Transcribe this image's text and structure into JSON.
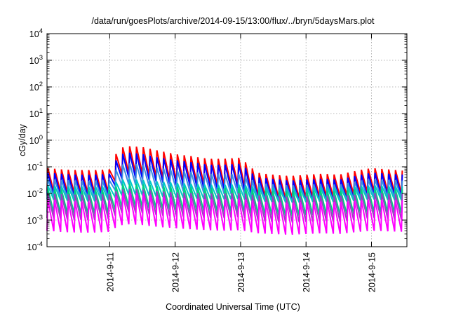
{
  "chart_data": {
    "type": "line",
    "title": "/data/run/goesPlots/archive/2014-09-15/13:00/flux/../bryn/5daysMars.plot",
    "xlabel": "Coordinated Universal Time (UTC)",
    "ylabel": "cGy/day",
    "yscale": "log",
    "ylim": [
      0.0001,
      10000
    ],
    "xlim": [
      "2014-09-10 01:00",
      "2014-09-15 13:00"
    ],
    "grid": true,
    "y_ticks": [
      {
        "base": "10",
        "exp": "-4"
      },
      {
        "base": "10",
        "exp": "-3"
      },
      {
        "base": "10",
        "exp": "-2"
      },
      {
        "base": "10",
        "exp": "-1"
      },
      {
        "base": "10",
        "exp": "0"
      },
      {
        "base": "10",
        "exp": "1"
      },
      {
        "base": "10",
        "exp": "2"
      },
      {
        "base": "10",
        "exp": "3"
      },
      {
        "base": "10",
        "exp": "4"
      }
    ],
    "x_ticks": [
      "2014-9-11",
      "2014-9-12",
      "2014-9-13",
      "2014-9-14",
      "2014-9-15"
    ],
    "period_hours": 2.5,
    "x": [
      "2014-09-10 01:00",
      "2014-09-10 06:00",
      "2014-09-10 12:00",
      "2014-09-10 18:00",
      "2014-09-11 00:00",
      "2014-09-11 03:00",
      "2014-09-11 06:00",
      "2014-09-11 12:00",
      "2014-09-11 18:00",
      "2014-09-12 00:00",
      "2014-09-12 06:00",
      "2014-09-12 12:00",
      "2014-09-12 18:00",
      "2014-09-13 00:00",
      "2014-09-13 06:00",
      "2014-09-13 12:00",
      "2014-09-13 18:00",
      "2014-09-14 00:00",
      "2014-09-14 06:00",
      "2014-09-14 12:00",
      "2014-09-14 18:00",
      "2014-09-15 00:00",
      "2014-09-15 06:00",
      "2014-09-15 13:00"
    ],
    "series": [
      {
        "color": "#ff0000",
        "peak": [
          0.09,
          0.08,
          0.075,
          0.075,
          0.08,
          0.45,
          0.6,
          0.55,
          0.4,
          0.3,
          0.25,
          0.2,
          0.2,
          0.22,
          0.06,
          0.05,
          0.045,
          0.05,
          0.055,
          0.05,
          0.07,
          0.09,
          0.08,
          0.07
        ],
        "trough": [
          0.012,
          0.011,
          0.01,
          0.01,
          0.011,
          0.045,
          0.06,
          0.055,
          0.04,
          0.03,
          0.025,
          0.022,
          0.02,
          0.022,
          0.008,
          0.007,
          0.006,
          0.007,
          0.0075,
          0.007,
          0.0095,
          0.012,
          0.011,
          0.01
        ]
      },
      {
        "color": "#0000ff",
        "peak": [
          0.06,
          0.055,
          0.05,
          0.05,
          0.055,
          0.25,
          0.35,
          0.3,
          0.22,
          0.18,
          0.15,
          0.12,
          0.12,
          0.13,
          0.04,
          0.035,
          0.03,
          0.033,
          0.036,
          0.033,
          0.045,
          0.06,
          0.055,
          0.05
        ],
        "trough": [
          0.009,
          0.008,
          0.0075,
          0.0075,
          0.008,
          0.03,
          0.04,
          0.035,
          0.027,
          0.021,
          0.018,
          0.015,
          0.014,
          0.016,
          0.0055,
          0.005,
          0.0045,
          0.0048,
          0.0052,
          0.0048,
          0.0065,
          0.0085,
          0.008,
          0.0075
        ]
      },
      {
        "color": "#3a8fe0",
        "peak": [
          0.035,
          0.032,
          0.03,
          0.03,
          0.032,
          0.1,
          0.14,
          0.12,
          0.09,
          0.075,
          0.065,
          0.055,
          0.052,
          0.055,
          0.025,
          0.022,
          0.02,
          0.021,
          0.023,
          0.021,
          0.028,
          0.035,
          0.032,
          0.03
        ],
        "trough": [
          0.008,
          0.007,
          0.0065,
          0.0065,
          0.007,
          0.018,
          0.022,
          0.02,
          0.016,
          0.013,
          0.011,
          0.01,
          0.0095,
          0.01,
          0.0055,
          0.005,
          0.0045,
          0.0048,
          0.005,
          0.0048,
          0.006,
          0.0075,
          0.007,
          0.0065
        ]
      },
      {
        "color": "#00c8c8",
        "peak": [
          0.02,
          0.019,
          0.018,
          0.018,
          0.019,
          0.03,
          0.035,
          0.032,
          0.028,
          0.025,
          0.023,
          0.021,
          0.021,
          0.022,
          0.017,
          0.016,
          0.015,
          0.016,
          0.017,
          0.016,
          0.018,
          0.02,
          0.019,
          0.018
        ],
        "trough": [
          0.006,
          0.0055,
          0.005,
          0.005,
          0.0055,
          0.008,
          0.009,
          0.0085,
          0.0075,
          0.007,
          0.0065,
          0.006,
          0.006,
          0.0062,
          0.005,
          0.0048,
          0.0045,
          0.0047,
          0.005,
          0.0047,
          0.0053,
          0.006,
          0.0057,
          0.0055
        ]
      },
      {
        "color": "#00d080",
        "peak": [
          0.015,
          0.014,
          0.013,
          0.013,
          0.014,
          0.02,
          0.024,
          0.022,
          0.019,
          0.018,
          0.017,
          0.016,
          0.016,
          0.017,
          0.013,
          0.012,
          0.012,
          0.012,
          0.013,
          0.012,
          0.014,
          0.015,
          0.014,
          0.014
        ],
        "trough": [
          0.002,
          0.0018,
          0.0017,
          0.0017,
          0.0018,
          0.0028,
          0.0032,
          0.003,
          0.0026,
          0.0024,
          0.0022,
          0.0021,
          0.002,
          0.0021,
          0.0016,
          0.0015,
          0.0014,
          0.0015,
          0.0016,
          0.0015,
          0.0017,
          0.002,
          0.0019,
          0.0018
        ]
      },
      {
        "color": "#9a40c0",
        "peak": [
          0.01,
          0.0095,
          0.009,
          0.009,
          0.0095,
          0.013,
          0.015,
          0.014,
          0.012,
          0.011,
          0.0105,
          0.01,
          0.01,
          0.0105,
          0.0085,
          0.008,
          0.0075,
          0.008,
          0.0085,
          0.008,
          0.009,
          0.0105,
          0.01,
          0.0095
        ],
        "trough": [
          0.0012,
          0.0011,
          0.001,
          0.001,
          0.0011,
          0.0017,
          0.002,
          0.0018,
          0.0015,
          0.0014,
          0.0013,
          0.0012,
          0.0012,
          0.0013,
          0.0009,
          0.00085,
          0.0008,
          0.00085,
          0.0009,
          0.00085,
          0.001,
          0.0012,
          0.0011,
          0.001
        ]
      },
      {
        "color": "#ff00ff",
        "peak": [
          0.006,
          0.0055,
          0.005,
          0.005,
          0.0055,
          0.009,
          0.011,
          0.01,
          0.008,
          0.007,
          0.0065,
          0.006,
          0.006,
          0.0065,
          0.005,
          0.0047,
          0.0045,
          0.0047,
          0.005,
          0.0047,
          0.0053,
          0.006,
          0.0057,
          0.0055
        ],
        "trough": [
          0.0004,
          0.00036,
          0.00034,
          0.00034,
          0.00036,
          0.0006,
          0.0007,
          0.00065,
          0.00055,
          0.0005,
          0.00045,
          0.00042,
          0.0004,
          0.00042,
          0.00032,
          0.0003,
          0.00028,
          0.0003,
          0.00032,
          0.0003,
          0.00035,
          0.0004,
          0.00038,
          0.00036
        ]
      }
    ]
  }
}
